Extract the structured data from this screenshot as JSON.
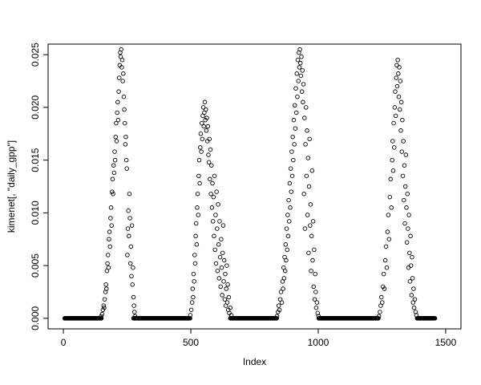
{
  "figure": {
    "background": "#ffffff",
    "point_color": "#000000",
    "box_color": "#000000"
  },
  "chart_data": {
    "type": "scatter",
    "title": "",
    "xlabel": "Index",
    "ylabel": "kimenet[, \"daily_gpp\"]",
    "xlim": [
      0,
      1500
    ],
    "ylim": [
      0,
      0.026
    ],
    "xticks": [
      0,
      500,
      1000,
      1500
    ],
    "xtick_labels": [
      "0",
      "500",
      "1000",
      "1500"
    ],
    "yticks": [
      0,
      0.005,
      0.01,
      0.015,
      0.02,
      0.025
    ],
    "ytick_labels": [
      "0.000",
      "0.005",
      "0.010",
      "0.015",
      "0.020",
      "0.025"
    ],
    "marker": "open-circle",
    "grid": false,
    "legend": "none",
    "zero_segments": [
      [
        5,
        150
      ],
      [
        275,
        498
      ],
      [
        655,
        838
      ],
      [
        1002,
        1236
      ],
      [
        1388,
        1458
      ]
    ],
    "zero_step": 2,
    "points": [
      [
        148,
        0.0002
      ],
      [
        152,
        0.0004
      ],
      [
        155,
        0.0008
      ],
      [
        158,
        0.0012
      ],
      [
        160,
        0.001
      ],
      [
        162,
        0.0018
      ],
      [
        165,
        0.0025
      ],
      [
        167,
        0.0032
      ],
      [
        169,
        0.0028
      ],
      [
        171,
        0.0045
      ],
      [
        173,
        0.0052
      ],
      [
        175,
        0.006
      ],
      [
        177,
        0.0048
      ],
      [
        179,
        0.0075
      ],
      [
        181,
        0.0082
      ],
      [
        183,
        0.0068
      ],
      [
        185,
        0.0095
      ],
      [
        187,
        0.0105
      ],
      [
        189,
        0.0088
      ],
      [
        191,
        0.012
      ],
      [
        193,
        0.0132
      ],
      [
        195,
        0.0118
      ],
      [
        197,
        0.0145
      ],
      [
        199,
        0.0138
      ],
      [
        201,
        0.0158
      ],
      [
        203,
        0.015
      ],
      [
        205,
        0.0172
      ],
      [
        207,
        0.0185
      ],
      [
        209,
        0.0168
      ],
      [
        211,
        0.0195
      ],
      [
        213,
        0.0205
      ],
      [
        215,
        0.0188
      ],
      [
        217,
        0.0215
      ],
      [
        219,
        0.0228
      ],
      [
        221,
        0.024
      ],
      [
        223,
        0.0252
      ],
      [
        225,
        0.0248
      ],
      [
        227,
        0.0255
      ],
      [
        229,
        0.0238
      ],
      [
        231,
        0.0245
      ],
      [
        233,
        0.0225
      ],
      [
        235,
        0.0232
      ],
      [
        237,
        0.021
      ],
      [
        239,
        0.0198
      ],
      [
        241,
        0.0185
      ],
      [
        243,
        0.0165
      ],
      [
        245,
        0.0172
      ],
      [
        247,
        0.015
      ],
      [
        249,
        0.0142
      ],
      [
        251,
        0.006
      ],
      [
        253,
        0.0085
      ],
      [
        255,
        0.0102
      ],
      [
        257,
        0.0078
      ],
      [
        259,
        0.0118
      ],
      [
        261,
        0.0095
      ],
      [
        263,
        0.0052
      ],
      [
        265,
        0.0068
      ],
      [
        267,
        0.004
      ],
      [
        269,
        0.0088
      ],
      [
        271,
        0.0032
      ],
      [
        273,
        0.0048
      ],
      [
        275,
        0.002
      ],
      [
        277,
        0.0012
      ],
      [
        279,
        0.0006
      ],
      [
        281,
        0.0002
      ],
      [
        498,
        0.0003
      ],
      [
        502,
        0.0008
      ],
      [
        505,
        0.0015
      ],
      [
        507,
        0.0028
      ],
      [
        509,
        0.002
      ],
      [
        511,
        0.0042
      ],
      [
        513,
        0.0035
      ],
      [
        515,
        0.006
      ],
      [
        517,
        0.0052
      ],
      [
        519,
        0.0078
      ],
      [
        521,
        0.009
      ],
      [
        523,
        0.007
      ],
      [
        525,
        0.0105
      ],
      [
        527,
        0.0118
      ],
      [
        529,
        0.0098
      ],
      [
        531,
        0.0135
      ],
      [
        533,
        0.015
      ],
      [
        535,
        0.0128
      ],
      [
        537,
        0.0162
      ],
      [
        539,
        0.0175
      ],
      [
        541,
        0.0158
      ],
      [
        543,
        0.0185
      ],
      [
        545,
        0.017
      ],
      [
        547,
        0.0192
      ],
      [
        549,
        0.02
      ],
      [
        551,
        0.0182
      ],
      [
        553,
        0.0195
      ],
      [
        555,
        0.0205
      ],
      [
        557,
        0.0188
      ],
      [
        559,
        0.0198
      ],
      [
        561,
        0.0178
      ],
      [
        563,
        0.019
      ],
      [
        565,
        0.0168
      ],
      [
        567,
        0.0182
      ],
      [
        569,
        0.0155
      ],
      [
        571,
        0.0148
      ],
      [
        573,
        0.017
      ],
      [
        575,
        0.0132
      ],
      [
        577,
        0.016
      ],
      [
        579,
        0.0118
      ],
      [
        581,
        0.0145
      ],
      [
        583,
        0.0105
      ],
      [
        585,
        0.0128
      ],
      [
        587,
        0.0092
      ],
      [
        589,
        0.0115
      ],
      [
        591,
        0.0078
      ],
      [
        593,
        0.0135
      ],
      [
        595,
        0.0065
      ],
      [
        597,
        0.0098
      ],
      [
        599,
        0.0052
      ],
      [
        601,
        0.012
      ],
      [
        603,
        0.0085
      ],
      [
        605,
        0.0045
      ],
      [
        607,
        0.0108
      ],
      [
        609,
        0.007
      ],
      [
        611,
        0.0038
      ],
      [
        613,
        0.0092
      ],
      [
        615,
        0.0058
      ],
      [
        617,
        0.003
      ],
      [
        619,
        0.0075
      ],
      [
        621,
        0.0048
      ],
      [
        623,
        0.0022
      ],
      [
        625,
        0.0062
      ],
      [
        627,
        0.0088
      ],
      [
        629,
        0.0035
      ],
      [
        631,
        0.0055
      ],
      [
        633,
        0.0018
      ],
      [
        635,
        0.0042
      ],
      [
        637,
        0.0012
      ],
      [
        639,
        0.0028
      ],
      [
        641,
        0.005
      ],
      [
        643,
        0.0015
      ],
      [
        645,
        0.0032
      ],
      [
        647,
        0.0008
      ],
      [
        649,
        0.002
      ],
      [
        651,
        0.0005
      ],
      [
        655,
        0.001
      ],
      [
        659,
        0.0003
      ],
      [
        838,
        0.0002
      ],
      [
        842,
        0.0006
      ],
      [
        845,
        0.0012
      ],
      [
        848,
        0.0008
      ],
      [
        851,
        0.0018
      ],
      [
        854,
        0.0025
      ],
      [
        857,
        0.0015
      ],
      [
        860,
        0.0035
      ],
      [
        862,
        0.0028
      ],
      [
        864,
        0.0048
      ],
      [
        866,
        0.0038
      ],
      [
        868,
        0.0058
      ],
      [
        870,
        0.0045
      ],
      [
        872,
        0.007
      ],
      [
        874,
        0.0055
      ],
      [
        876,
        0.0085
      ],
      [
        878,
        0.0065
      ],
      [
        880,
        0.0098
      ],
      [
        882,
        0.0078
      ],
      [
        884,
        0.0112
      ],
      [
        886,
        0.0092
      ],
      [
        888,
        0.0128
      ],
      [
        890,
        0.0105
      ],
      [
        892,
        0.0142
      ],
      [
        894,
        0.012
      ],
      [
        896,
        0.0158
      ],
      [
        898,
        0.0135
      ],
      [
        900,
        0.0172
      ],
      [
        902,
        0.015
      ],
      [
        904,
        0.0188
      ],
      [
        906,
        0.0165
      ],
      [
        908,
        0.0202
      ],
      [
        910,
        0.018
      ],
      [
        912,
        0.0218
      ],
      [
        914,
        0.0195
      ],
      [
        916,
        0.0232
      ],
      [
        918,
        0.021
      ],
      [
        920,
        0.0245
      ],
      [
        922,
        0.0225
      ],
      [
        924,
        0.0252
      ],
      [
        926,
        0.0238
      ],
      [
        928,
        0.0255
      ],
      [
        930,
        0.0242
      ],
      [
        932,
        0.023
      ],
      [
        934,
        0.0248
      ],
      [
        936,
        0.0215
      ],
      [
        938,
        0.0235
      ],
      [
        940,
        0.0205
      ],
      [
        942,
        0.0222
      ],
      [
        944,
        0.0118
      ],
      [
        946,
        0.019
      ],
      [
        948,
        0.0085
      ],
      [
        950,
        0.0165
      ],
      [
        952,
        0.02
      ],
      [
        954,
        0.0135
      ],
      [
        956,
        0.0178
      ],
      [
        958,
        0.0098
      ],
      [
        960,
        0.0152
      ],
      [
        962,
        0.0062
      ],
      [
        964,
        0.0125
      ],
      [
        966,
        0.017
      ],
      [
        968,
        0.0088
      ],
      [
        970,
        0.0108
      ],
      [
        972,
        0.0045
      ],
      [
        974,
        0.0078
      ],
      [
        976,
        0.014
      ],
      [
        978,
        0.0055
      ],
      [
        980,
        0.0092
      ],
      [
        982,
        0.003
      ],
      [
        984,
        0.0065
      ],
      [
        986,
        0.0018
      ],
      [
        988,
        0.0042
      ],
      [
        990,
        0.0025
      ],
      [
        992,
        0.001
      ],
      [
        995,
        0.0015
      ],
      [
        998,
        0.0005
      ],
      [
        1001,
        0.0002
      ],
      [
        1238,
        0.0002
      ],
      [
        1242,
        0.0006
      ],
      [
        1245,
        0.0012
      ],
      [
        1248,
        0.002
      ],
      [
        1251,
        0.0015
      ],
      [
        1254,
        0.003
      ],
      [
        1257,
        0.0042
      ],
      [
        1260,
        0.0028
      ],
      [
        1263,
        0.0055
      ],
      [
        1266,
        0.0068
      ],
      [
        1269,
        0.0048
      ],
      [
        1272,
        0.0082
      ],
      [
        1275,
        0.0098
      ],
      [
        1278,
        0.0075
      ],
      [
        1281,
        0.0115
      ],
      [
        1284,
        0.0132
      ],
      [
        1287,
        0.0105
      ],
      [
        1290,
        0.015
      ],
      [
        1292,
        0.0168
      ],
      [
        1294,
        0.014
      ],
      [
        1296,
        0.0185
      ],
      [
        1298,
        0.0162
      ],
      [
        1300,
        0.02
      ],
      [
        1302,
        0.0215
      ],
      [
        1304,
        0.0192
      ],
      [
        1306,
        0.0228
      ],
      [
        1308,
        0.024
      ],
      [
        1310,
        0.022
      ],
      [
        1312,
        0.0245
      ],
      [
        1314,
        0.0232
      ],
      [
        1316,
        0.021
      ],
      [
        1318,
        0.0238
      ],
      [
        1320,
        0.0198
      ],
      [
        1322,
        0.0225
      ],
      [
        1324,
        0.0178
      ],
      [
        1326,
        0.0205
      ],
      [
        1328,
        0.0158
      ],
      [
        1330,
        0.0188
      ],
      [
        1332,
        0.0135
      ],
      [
        1334,
        0.0168
      ],
      [
        1336,
        0.0112
      ],
      [
        1338,
        0.0145
      ],
      [
        1340,
        0.009
      ],
      [
        1342,
        0.0125
      ],
      [
        1344,
        0.0155
      ],
      [
        1346,
        0.0105
      ],
      [
        1348,
        0.0072
      ],
      [
        1350,
        0.0118
      ],
      [
        1352,
        0.0085
      ],
      [
        1354,
        0.0048
      ],
      [
        1356,
        0.0098
      ],
      [
        1358,
        0.0062
      ],
      [
        1360,
        0.0035
      ],
      [
        1362,
        0.0078
      ],
      [
        1364,
        0.005
      ],
      [
        1366,
        0.0022
      ],
      [
        1368,
        0.0058
      ],
      [
        1370,
        0.0038
      ],
      [
        1372,
        0.0015
      ],
      [
        1374,
        0.0028
      ],
      [
        1376,
        0.001
      ],
      [
        1379,
        0.0018
      ],
      [
        1382,
        0.0006
      ],
      [
        1385,
        0.0003
      ]
    ]
  }
}
